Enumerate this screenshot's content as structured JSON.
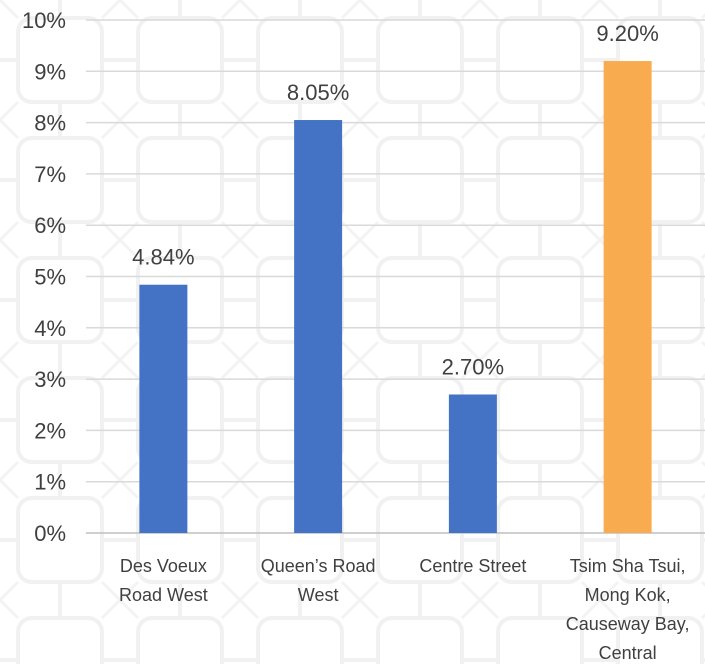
{
  "chart_data": {
    "type": "bar",
    "categories": [
      [
        "Des Voeux",
        "Road West"
      ],
      [
        "Queen’s Road",
        "West"
      ],
      [
        "Centre Street"
      ],
      [
        "Tsim Sha Tsui,",
        "Mong Kok,",
        "Causeway Bay,",
        "Central"
      ]
    ],
    "values": [
      4.84,
      8.05,
      2.7,
      9.2
    ],
    "data_labels": [
      "4.84%",
      "8.05%",
      "2.70%",
      "9.20%"
    ],
    "bar_colors": [
      "#4472C4",
      "#4472C4",
      "#4472C4",
      "#F9AC4F"
    ],
    "y_ticks": [
      "0%",
      "1%",
      "2%",
      "3%",
      "4%",
      "5%",
      "6%",
      "7%",
      "8%",
      "9%",
      "10%"
    ],
    "ylim": [
      0,
      10
    ],
    "grid": true,
    "title": "",
    "xlabel": "",
    "ylabel": ""
  }
}
